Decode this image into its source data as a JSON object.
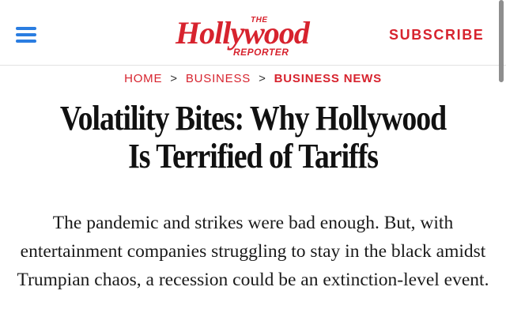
{
  "header": {
    "menu_icon": "hamburger-menu-icon",
    "logo": {
      "small_top": "THE",
      "main": "Hollywood",
      "small_bottom": "REPORTER"
    },
    "subscribe_label": "SUBSCRIBE",
    "accent_color": "#d7232e",
    "menu_color": "#2a7de1"
  },
  "breadcrumb": {
    "items": [
      {
        "label": "HOME"
      },
      {
        "label": "BUSINESS"
      },
      {
        "label": "BUSINESS NEWS"
      }
    ],
    "separator": ">"
  },
  "article": {
    "headline": "Volatility Bites: Why Hollywood Is Terrified of Tariffs",
    "dek": "The pandemic and strikes were bad enough. But, with entertainment companies struggling to stay in the black amidst Trumpian chaos, a recession could be an extinction-level event."
  }
}
